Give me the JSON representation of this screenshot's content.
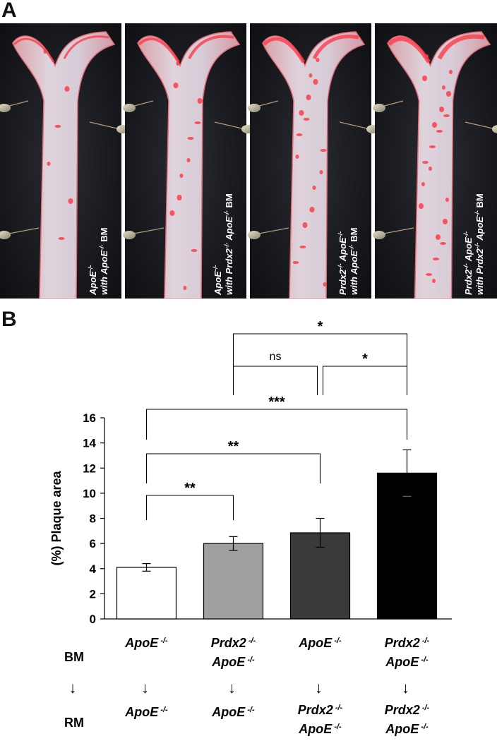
{
  "panel_a": {
    "letter": "A",
    "photos": [
      {
        "label_line1": "ApoE",
        "label_line1_sup": "-/-",
        "label_line2_pre": "with ",
        "label_line2_gene": "ApoE",
        "label_line2_sup": "-/-",
        "label_line2_post": " BM"
      },
      {
        "label_line1": "ApoE",
        "label_line1_sup": "-/-",
        "label_line2_pre": "with ",
        "label_line2_gene": "Prdx2",
        "label_line2_sup": "-/-",
        "label_line2_gene2": " ApoE",
        "label_line2_sup2": "-/-",
        "label_line2_post": " BM"
      },
      {
        "label_line1": "Prdx2",
        "label_line1_sup": "-/-",
        "label_line1_gene2": " ApoE",
        "label_line1_sup2": "-/-",
        "label_line2_pre": "with ",
        "label_line2_gene": "ApoE",
        "label_line2_sup": "-/-",
        "label_line2_post": " BM"
      },
      {
        "label_line1": "Prdx2",
        "label_line1_sup": "-/-",
        "label_line1_gene2": " ApoE",
        "label_line1_sup2": "-/-",
        "label_line2_pre": "with ",
        "label_line2_gene": "Prdx2",
        "label_line2_sup": "-/-",
        "label_line2_gene2": " ApoE",
        "label_line2_sup2": "-/-",
        "label_line2_post": " BM"
      }
    ]
  },
  "panel_b": {
    "letter": "B",
    "row_labels": {
      "bm": "BM",
      "rm": "RM",
      "arrow": "↓"
    },
    "groups": [
      {
        "bm_line1": "ApoE",
        "bm_sup1": "-/-",
        "bm_line2": "",
        "bm_sup2": "",
        "rm_line1": "ApoE",
        "rm_sup1": "-/-",
        "rm_line2": "",
        "rm_sup2": ""
      },
      {
        "bm_line1": "Prdx2",
        "bm_sup1": "-/-",
        "bm_line2": "ApoE",
        "bm_sup2": "-/-",
        "rm_line1": "ApoE",
        "rm_sup1": "-/-",
        "rm_line2": "",
        "rm_sup2": ""
      },
      {
        "bm_line1": "ApoE",
        "bm_sup1": "-/-",
        "bm_line2": "",
        "bm_sup2": "",
        "rm_line1": "Prdx2",
        "rm_sup1": "-/-",
        "rm_line2": "ApoE",
        "rm_sup2": "-/-"
      },
      {
        "bm_line1": "Prdx2",
        "bm_sup1": "-/-",
        "bm_line2": "ApoE",
        "bm_sup2": "-/-",
        "rm_line1": "Prdx2",
        "rm_sup1": "-/-",
        "rm_line2": "ApoE",
        "rm_sup2": "-/-"
      }
    ]
  },
  "chart_data": {
    "type": "bar",
    "categories": [
      "1",
      "2",
      "3",
      "4"
    ],
    "values": [
      4.1,
      6.0,
      6.85,
      11.6
    ],
    "errors": [
      0.3,
      0.55,
      1.15,
      1.85
    ],
    "bar_colors": [
      "#ffffff",
      "#a0a0a0",
      "#3a3a3a",
      "#000000"
    ],
    "ylabel": "(%) Plaque area",
    "ylim": [
      0,
      16
    ],
    "yticks": [
      "0",
      "2",
      "4",
      "6",
      "8",
      "10",
      "12",
      "14",
      "16"
    ],
    "grid": false,
    "significance": [
      {
        "from": 0,
        "to": 1,
        "label": "**"
      },
      {
        "from": 0,
        "to": 2,
        "label": "**"
      },
      {
        "from": 0,
        "to": 3,
        "label": "***"
      },
      {
        "from": 1,
        "to": 2,
        "label": "ns"
      },
      {
        "from": 2,
        "to": 3,
        "label": "*"
      },
      {
        "from": 1,
        "to": 3,
        "label": "*"
      }
    ]
  }
}
